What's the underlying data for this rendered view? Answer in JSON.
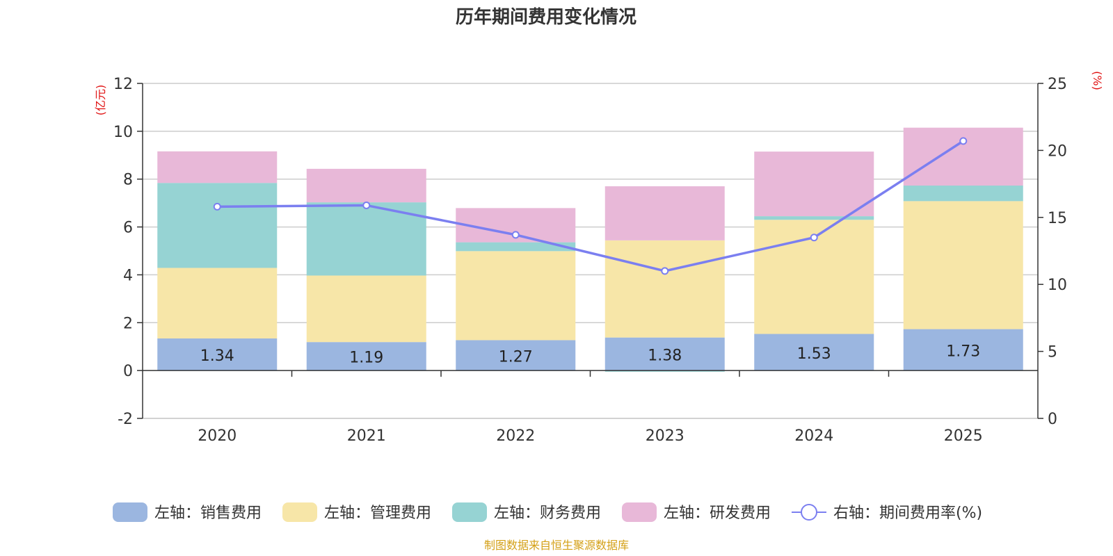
{
  "chart_data": {
    "type": "bar",
    "title": "历年期间费用变化情况",
    "categories": [
      "2020",
      "2021",
      "2022",
      "2023",
      "2024",
      "2025"
    ],
    "left_axis": {
      "unit": "(亿元)",
      "ylim": [
        -2,
        12
      ],
      "ticks": [
        "-2",
        "0",
        "2",
        "4",
        "6",
        "8",
        "10",
        "12"
      ]
    },
    "right_axis": {
      "unit": "(%)",
      "ylim": [
        0,
        25
      ],
      "ticks": [
        "0",
        "5",
        "10",
        "15",
        "20",
        "25"
      ]
    },
    "series": [
      {
        "name": "左轴：销售费用",
        "type": "bar",
        "axis": "left",
        "color": "#9bb6e0",
        "values": [
          1.34,
          1.19,
          1.27,
          1.38,
          1.53,
          1.73
        ],
        "labels": [
          "1.34",
          "1.19",
          "1.27",
          "1.38",
          "1.53",
          "1.73"
        ]
      },
      {
        "name": "左轴：管理费用",
        "type": "bar",
        "axis": "left",
        "color": "#f7e6a8",
        "values": [
          2.95,
          2.78,
          3.72,
          4.06,
          4.77,
          5.35
        ]
      },
      {
        "name": "左轴：财务费用",
        "type": "bar",
        "axis": "left",
        "color": "#96d3d3",
        "values": [
          3.55,
          3.06,
          0.37,
          -0.05,
          0.15,
          0.65
        ]
      },
      {
        "name": "左轴：研发费用",
        "type": "bar",
        "axis": "left",
        "color": "#e8b8d8",
        "values": [
          1.32,
          1.4,
          1.43,
          2.26,
          2.7,
          2.42
        ]
      },
      {
        "name": "右轴：期间费用率(%)",
        "type": "line",
        "axis": "right",
        "color": "#7b7ff0",
        "values": [
          15.8,
          15.9,
          13.7,
          11.0,
          13.5,
          20.7
        ]
      }
    ],
    "source": "制图数据来自恒生聚源数据库"
  }
}
